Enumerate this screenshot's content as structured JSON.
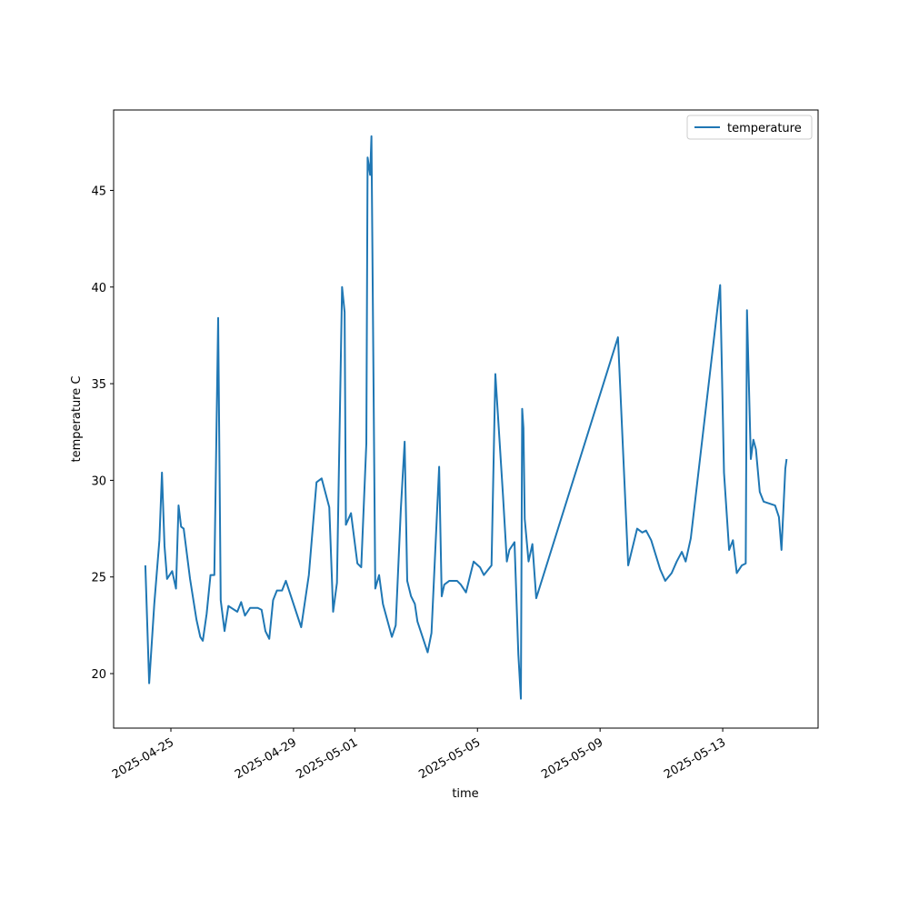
{
  "chart_data": {
    "type": "line",
    "xlabel": "time",
    "ylabel": "temperature C",
    "x": [
      "2025-04-24T04:00",
      "2025-04-24T07:00",
      "2025-04-24T11:00",
      "2025-04-24T15:00",
      "2025-04-24T17:00",
      "2025-04-24T19:00",
      "2025-04-24T21:00",
      "2025-04-25T01:00",
      "2025-04-25T04:00",
      "2025-04-25T06:00",
      "2025-04-25T08:00",
      "2025-04-25T10:00",
      "2025-04-25T15:00",
      "2025-04-25T20:00",
      "2025-04-25T23:00",
      "2025-04-26T01:00",
      "2025-04-26T04:00",
      "2025-04-26T07:00",
      "2025-04-26T10:00",
      "2025-04-26T13:00",
      "2025-04-26T15:00",
      "2025-04-26T18:00",
      "2025-04-26T21:00",
      "2025-04-27T04:00",
      "2025-04-27T07:00",
      "2025-04-27T10:00",
      "2025-04-27T14:00",
      "2025-04-27T20:00",
      "2025-04-27T23:00",
      "2025-04-28T02:00",
      "2025-04-28T05:00",
      "2025-04-28T08:00",
      "2025-04-28T11:00",
      "2025-04-28T15:00",
      "2025-04-28T18:00",
      "2025-04-28T21:00",
      "2025-04-29T03:00",
      "2025-04-29T06:00",
      "2025-04-29T12:00",
      "2025-04-29T18:00",
      "2025-04-29T22:00",
      "2025-04-30T04:00",
      "2025-04-30T07:00",
      "2025-04-30T10:00",
      "2025-04-30T14:00",
      "2025-04-30T16:00",
      "2025-04-30T17:00",
      "2025-04-30T21:00",
      "2025-05-01T02:00",
      "2025-05-01T05:00",
      "2025-05-01T09:00",
      "2025-05-01T10:00",
      "2025-05-01T12:00",
      "2025-05-01T13:00",
      "2025-05-01T16:00",
      "2025-05-01T19:00",
      "2025-05-01T22:00",
      "2025-05-02T05:00",
      "2025-05-02T08:00",
      "2025-05-02T12:00",
      "2025-05-02T15:00",
      "2025-05-02T17:00",
      "2025-05-02T20:00",
      "2025-05-02T23:00",
      "2025-05-03T01:00",
      "2025-05-03T05:00",
      "2025-05-03T09:00",
      "2025-05-03T12:00",
      "2025-05-03T18:00",
      "2025-05-03T20:00",
      "2025-05-03T22:00",
      "2025-05-04T02:00",
      "2025-05-04T08:00",
      "2025-05-04T11:00",
      "2025-05-04T15:00",
      "2025-05-04T21:00",
      "2025-05-05T02:00",
      "2025-05-05T05:00",
      "2025-05-05T11:00",
      "2025-05-05T14:00",
      "2025-05-05T20:00",
      "2025-05-05T23:00",
      "2025-05-06T01:00",
      "2025-05-06T05:00",
      "2025-05-06T08:00",
      "2025-05-06T10:00",
      "2025-05-06T11:00",
      "2025-05-06T12:00",
      "2025-05-06T13:00",
      "2025-05-06T16:00",
      "2025-05-06T19:00",
      "2025-05-06T22:00",
      "2025-05-09T14:00",
      "2025-05-09T22:00",
      "2025-05-10T05:00",
      "2025-05-10T09:00",
      "2025-05-10T12:00",
      "2025-05-10T16:00",
      "2025-05-10T23:00",
      "2025-05-11T03:00",
      "2025-05-11T08:00",
      "2025-05-11T12:00",
      "2025-05-11T16:00",
      "2025-05-11T19:00",
      "2025-05-11T23:00",
      "2025-05-12T22:00",
      "2025-05-13T01:00",
      "2025-05-13T05:00",
      "2025-05-13T08:00",
      "2025-05-13T11:00",
      "2025-05-13T15:00",
      "2025-05-13T18:00",
      "2025-05-13T19:00",
      "2025-05-13T22:00",
      "2025-05-14T00:00",
      "2025-05-14T02:00",
      "2025-05-14T05:00",
      "2025-05-14T08:00",
      "2025-05-14T17:00",
      "2025-05-14T20:00",
      "2025-05-14T22:00",
      "2025-05-15T01:00",
      "2025-05-15T02:00"
    ],
    "series": [
      {
        "name": "temperature",
        "color": "#1f77b4",
        "values": [
          25.6,
          19.5,
          23.6,
          26.9,
          30.4,
          26.6,
          24.9,
          25.3,
          24.4,
          28.7,
          27.6,
          27.5,
          24.9,
          22.8,
          21.9,
          21.7,
          23.1,
          25.1,
          25.1,
          38.4,
          23.8,
          22.2,
          23.5,
          23.2,
          23.7,
          23.0,
          23.4,
          23.4,
          23.3,
          22.2,
          21.8,
          23.8,
          24.3,
          24.3,
          24.8,
          24.2,
          23.0,
          22.4,
          25.1,
          29.9,
          30.1,
          28.6,
          23.2,
          24.7,
          40.0,
          38.7,
          27.7,
          28.3,
          25.7,
          25.5,
          31.9,
          46.7,
          45.8,
          47.8,
          24.4,
          25.1,
          23.6,
          21.9,
          22.5,
          28.5,
          32.0,
          24.8,
          24.0,
          23.6,
          22.7,
          21.9,
          21.1,
          22.1,
          30.7,
          24.0,
          24.6,
          24.8,
          24.8,
          24.6,
          24.2,
          25.8,
          25.5,
          25.1,
          25.6,
          35.5,
          29.2,
          25.8,
          26.4,
          26.8,
          21.0,
          18.7,
          33.7,
          32.7,
          28.0,
          25.8,
          26.7,
          23.9,
          37.4,
          25.6,
          27.5,
          27.3,
          27.4,
          26.9,
          25.4,
          24.8,
          25.2,
          25.8,
          26.3,
          25.8,
          27.0,
          40.1,
          30.4,
          26.4,
          26.9,
          25.2,
          25.6,
          25.7,
          38.8,
          31.1,
          32.1,
          31.6,
          29.4,
          28.9,
          28.7,
          28.1,
          26.4,
          30.6,
          31.1
        ]
      }
    ],
    "xlim": [
      "2025-04-23T03:10",
      "2025-05-16T02:40"
    ],
    "xticks": [
      "2025-04-25",
      "2025-04-29",
      "2025-05-01",
      "2025-05-05",
      "2025-05-09",
      "2025-05-13"
    ],
    "ylim": [
      17.18,
      49.16
    ],
    "yticks": [
      20,
      25,
      30,
      35,
      40,
      45
    ],
    "legend": "upper right"
  }
}
